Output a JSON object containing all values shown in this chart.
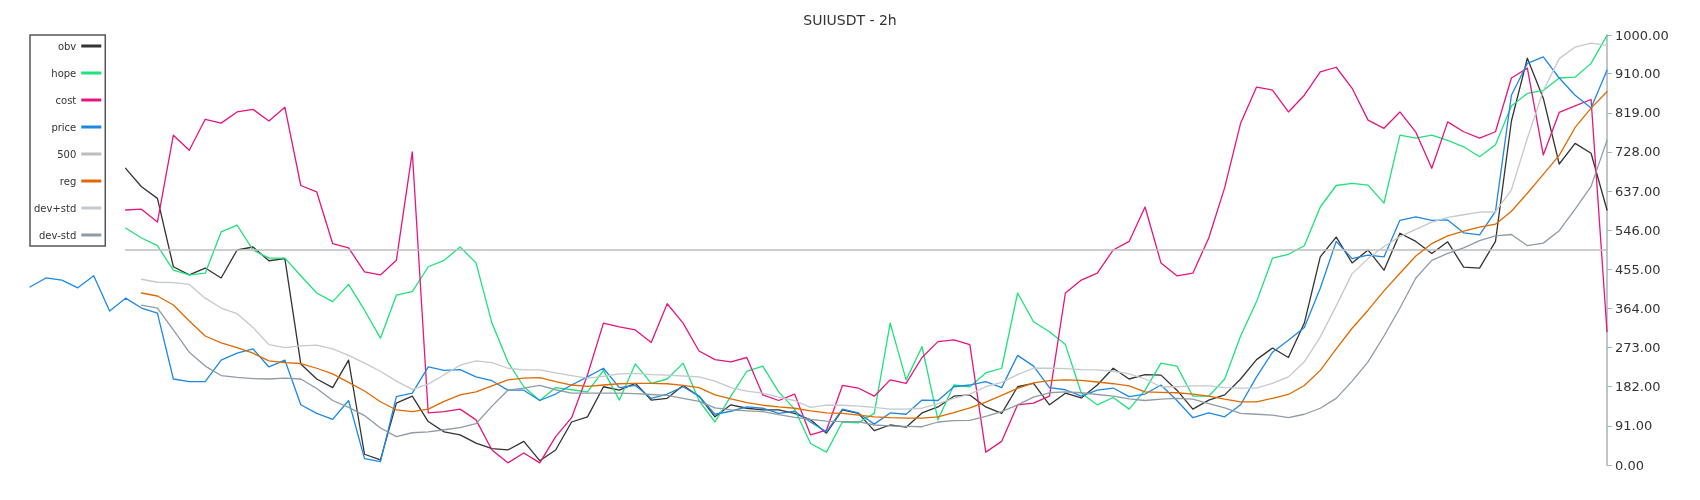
{
  "chart_data": {
    "type": "line",
    "title": "SUIUSDT - 2h",
    "categories": [
      null,
      null,
      null,
      null,
      null,
      null,
      null,
      null,
      null,
      null,
      null,
      null,
      null,
      null,
      null,
      null,
      null,
      null,
      null,
      null,
      null,
      null,
      null,
      null,
      null,
      null,
      null,
      null,
      null,
      null,
      null,
      null,
      null,
      null,
      null,
      null,
      null,
      null,
      null,
      null,
      null,
      null,
      null,
      null,
      null,
      null,
      null,
      null,
      null,
      null,
      null,
      null,
      null,
      null,
      null,
      null,
      null,
      null,
      null,
      null,
      null,
      null,
      null,
      null,
      null,
      null,
      null,
      null,
      null,
      null,
      null,
      null,
      null,
      null,
      null,
      null,
      null,
      null,
      null,
      null,
      null,
      null,
      null,
      null,
      null,
      null,
      null,
      null,
      null,
      null,
      null,
      null,
      null,
      null,
      null,
      null,
      null,
      null,
      null,
      null
    ],
    "ylim": [
      0,
      1000
    ],
    "yticks": [
      {
        "value": 0,
        "label": "0.00"
      },
      {
        "value": 91,
        "label": "91.00"
      },
      {
        "value": 182,
        "label": "182.00"
      },
      {
        "value": 273,
        "label": "273.00"
      },
      {
        "value": 364,
        "label": "364.00"
      },
      {
        "value": 455,
        "label": "455.00"
      },
      {
        "value": 546,
        "label": "546.00"
      },
      {
        "value": 637,
        "label": "637.00"
      },
      {
        "value": 728,
        "label": "728.00"
      },
      {
        "value": 819,
        "label": "819.00"
      },
      {
        "value": 910,
        "label": "910.00"
      },
      {
        "value": 1000,
        "label": "1000.00"
      }
    ],
    "grid": false,
    "legend": "top left",
    "tick_labels": "y",
    "marker": "none",
    "line_style": "solid",
    "series": [
      {
        "name": "obv",
        "color": "#333333",
        "values": [
          null,
          null,
          null,
          null,
          null,
          null,
          690,
          647,
          620,
          461,
          442,
          458,
          435,
          500,
          507,
          475,
          480,
          235,
          200,
          180,
          244,
          25,
          12,
          144,
          160,
          101,
          77,
          70,
          51,
          38,
          35,
          55,
          10,
          35,
          100,
          112,
          182,
          174,
          190,
          151,
          155,
          185,
          160,
          112,
          140,
          132,
          128,
          128,
          120,
          105,
          74,
          128,
          120,
          80,
          93,
          88,
          121,
          135,
          160,
          163,
          135,
          120,
          182,
          190,
          140,
          167,
          156,
          186,
          225,
          200,
          210,
          209,
          174,
          130,
          151,
          163,
          200,
          245,
          272,
          250,
          330,
          484,
          530,
          470,
          500,
          453,
          539,
          520,
          492,
          519,
          460,
          458,
          520,
          800,
          946,
          853,
          700,
          748,
          725,
          593
        ]
      },
      {
        "name": "hope",
        "color": "#1ee27a",
        "values": [
          null,
          null,
          null,
          null,
          null,
          null,
          551,
          528,
          510,
          453,
          442,
          446,
          542,
          558,
          500,
          481,
          481,
          440,
          400,
          380,
          420,
          360,
          295,
          395,
          403,
          461,
          476,
          507,
          470,
          330,
          240,
          182,
          150,
          180,
          175,
          170,
          220,
          151,
          235,
          190,
          200,
          237,
          150,
          100,
          160,
          218,
          230,
          170,
          130,
          50,
          30,
          100,
          98,
          120,
          330,
          198,
          275,
          105,
          186,
          182,
          214,
          225,
          400,
          333,
          310,
          280,
          167,
          140,
          157,
          130,
          174,
          237,
          230,
          160,
          160,
          200,
          300,
          380,
          481,
          490,
          510,
          600,
          650,
          655,
          651,
          609,
          767,
          760,
          767,
          755,
          740,
          717,
          745,
          835,
          864,
          871,
          900,
          902,
          934,
          999
        ]
      },
      {
        "name": "cost",
        "color": "#e6157f",
        "values": [
          null,
          null,
          null,
          null,
          null,
          null,
          593,
          595,
          565,
          767,
          732,
          804,
          795,
          821,
          827,
          800,
          832,
          650,
          635,
          515,
          505,
          449,
          442,
          476,
          728,
          121,
          124,
          130,
          105,
          35,
          5,
          28,
          5,
          66,
          110,
          210,
          330,
          321,
          314,
          285,
          375,
          330,
          265,
          245,
          240,
          250,
          163,
          150,
          165,
          70,
          81,
          185,
          179,
          160,
          198,
          190,
          250,
          287,
          291,
          280,
          30,
          55,
          140,
          144,
          160,
          400,
          430,
          446,
          500,
          520,
          600,
          470,
          440,
          446,
          528,
          645,
          795,
          879,
          872,
          821,
          860,
          914,
          925,
          876,
          802,
          783,
          821,
          774,
          690,
          798,
          775,
          760,
          775,
          900,
          923,
          721,
          820,
          835,
          850,
          310
        ]
      },
      {
        "name": "price",
        "color": "#1e88e5",
        "values": [
          414,
          435,
          430,
          412,
          440,
          358,
          388,
          365,
          353,
          200,
          194,
          194,
          244,
          260,
          270,
          228,
          244,
          140,
          120,
          106,
          150,
          15,
          8,
          159,
          167,
          228,
          220,
          222,
          205,
          196,
          174,
          174,
          150,
          165,
          186,
          205,
          225,
          180,
          185,
          155,
          165,
          182,
          160,
          118,
          125,
          135,
          132,
          120,
          125,
          100,
          77,
          130,
          121,
          95,
          121,
          118,
          151,
          150,
          182,
          186,
          194,
          180,
          255,
          230,
          180,
          175,
          160,
          174,
          179,
          159,
          165,
          186,
          150,
          110,
          121,
          112,
          140,
          205,
          262,
          290,
          320,
          411,
          520,
          480,
          488,
          484,
          569,
          577,
          569,
          570,
          540,
          535,
          590,
          860,
          934,
          949,
          900,
          860,
          830,
          918
        ]
      },
      {
        "name": "500",
        "color": "#bdbdbd",
        "values": [
          null,
          null,
          null,
          null,
          null,
          null,
          500,
          500,
          500,
          500,
          500,
          500,
          500,
          500,
          500,
          500,
          500,
          500,
          500,
          500,
          500,
          500,
          500,
          500,
          500,
          500,
          500,
          500,
          500,
          500,
          500,
          500,
          500,
          500,
          500,
          500,
          500,
          500,
          500,
          500,
          500,
          500,
          500,
          500,
          500,
          500,
          500,
          500,
          500,
          500,
          500,
          500,
          500,
          500,
          500,
          500,
          500,
          500,
          500,
          500,
          500,
          500,
          500,
          500,
          500,
          500,
          500,
          500,
          500,
          500,
          500,
          500,
          500,
          500,
          500,
          500,
          500,
          500,
          500,
          500,
          500,
          500,
          500,
          500,
          500,
          500,
          500,
          500,
          500,
          500,
          500,
          500,
          500,
          500,
          500,
          500,
          500,
          500,
          500,
          500
        ]
      },
      {
        "name": "reg",
        "color": "#e06a00",
        "values": [
          null,
          null,
          null,
          null,
          null,
          null,
          null,
          400,
          393,
          372,
          335,
          300,
          284,
          273,
          260,
          242,
          238,
          236,
          225,
          212,
          192,
          172,
          147,
          128,
          124,
          130,
          148,
          163,
          170,
          184,
          198,
          202,
          203,
          194,
          186,
          183,
          186,
          189,
          190,
          190,
          189,
          185,
          180,
          163,
          154,
          145,
          139,
          135,
          132,
          126,
          121,
          120,
          116,
          112,
          110,
          109,
          109,
          112,
          122,
          133,
          146,
          162,
          178,
          191,
          196,
          198,
          197,
          193,
          189,
          184,
          170,
          169,
          168,
          165,
          160,
          153,
          147,
          147,
          155,
          164,
          185,
          220,
          270,
          318,
          360,
          405,
          446,
          486,
          515,
          533,
          544,
          553,
          560,
          590,
          632,
          676,
          720,
          785,
          830,
          868
        ]
      },
      {
        "name": "dev+std",
        "color": "#c4c9cd",
        "values": [
          null,
          null,
          null,
          null,
          null,
          null,
          null,
          432,
          425,
          424,
          420,
          388,
          365,
          352,
          320,
          280,
          273,
          277,
          279,
          270,
          255,
          237,
          218,
          195,
          176,
          188,
          210,
          232,
          242,
          238,
          225,
          221,
          221,
          214,
          208,
          202,
          206,
          212,
          213,
          210,
          209,
          207,
          205,
          195,
          180,
          172,
          167,
          158,
          150,
          134,
          139,
          139,
          137,
          134,
          130,
          130,
          132,
          143,
          155,
          165,
          182,
          192,
          210,
          225,
          225,
          224,
          222,
          221,
          218,
          212,
          200,
          182,
          182,
          184,
          184,
          180,
          179,
          179,
          190,
          205,
          240,
          298,
          370,
          445,
          480,
          508,
          531,
          548,
          565,
          576,
          582,
          588,
          589,
          640,
          760,
          870,
          945,
          972,
          981,
          976
        ]
      },
      {
        "name": "dev-std",
        "color": "#909ba3",
        "values": [
          null,
          null,
          null,
          null,
          null,
          null,
          null,
          372,
          365,
          314,
          262,
          230,
          208,
          204,
          201,
          200,
          202,
          200,
          178,
          150,
          134,
          115,
          86,
          66,
          75,
          77,
          82,
          87,
          96,
          137,
          174,
          179,
          185,
          175,
          167,
          167,
          167,
          167,
          166,
          164,
          162,
          155,
          148,
          133,
          128,
          126,
          124,
          117,
          111,
          106,
          102,
          101,
          101,
          93,
          91,
          90,
          89,
          100,
          103,
          104,
          113,
          124,
          140,
          158,
          168,
          170,
          168,
          164,
          160,
          154,
          150,
          153,
          155,
          153,
          143,
          133,
          120,
          118,
          116,
          110,
          118,
          132,
          155,
          195,
          240,
          300,
          365,
          435,
          476,
          492,
          505,
          522,
          533,
          536,
          510,
          516,
          545,
          595,
          648,
          755
        ]
      }
    ]
  }
}
